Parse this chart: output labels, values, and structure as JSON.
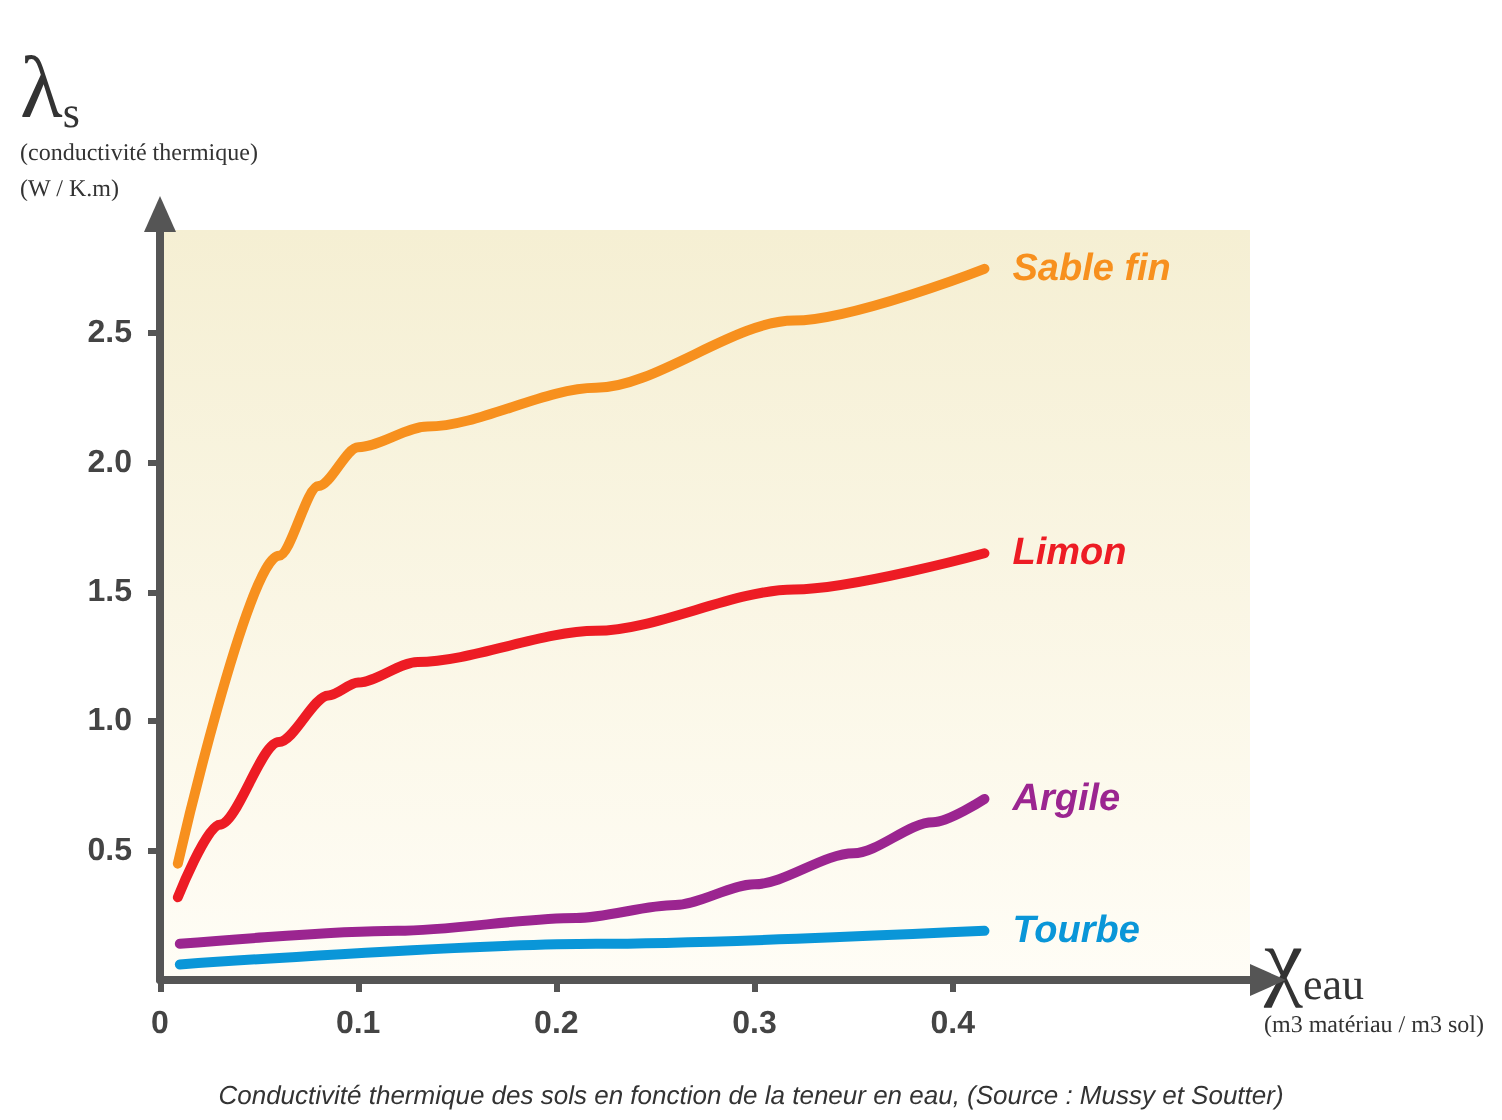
{
  "chart_data": {
    "type": "line",
    "xlabel": "χ$_{eau}$\n(m3 matériau / m3 sol)",
    "ylabel": "λ$_{s}$\n(conductivité thermique)\n(W / K.m)",
    "annotations": [
      "Conductivité thermique des sols en fonction de la teneur en eau, (Source : Mussy et Soutter)"
    ],
    "series": [
      {
        "name": "Sable fin",
        "color": "#f7901e",
        "x": [
          0.009,
          0.06,
          0.08,
          0.1,
          0.135,
          0.22,
          0.32,
          0.416
        ],
        "values": [
          0.45,
          1.64,
          1.91,
          2.06,
          2.14,
          2.29,
          2.55,
          2.75
        ]
      },
      {
        "name": "Limon",
        "color": "#ed1c24",
        "x": [
          0.009,
          0.03,
          0.06,
          0.085,
          0.1,
          0.13,
          0.22,
          0.32,
          0.416
        ],
        "values": [
          0.32,
          0.6,
          0.92,
          1.1,
          1.15,
          1.23,
          1.35,
          1.51,
          1.65
        ]
      },
      {
        "name": "Argile",
        "color": "#9b2590",
        "x": [
          0.01,
          0.12,
          0.21,
          0.26,
          0.3,
          0.35,
          0.39,
          0.416
        ],
        "values": [
          0.14,
          0.19,
          0.24,
          0.29,
          0.37,
          0.49,
          0.61,
          0.7
        ]
      },
      {
        "name": "Tourbe",
        "color": "#0a96d8",
        "x": [
          0.01,
          0.22,
          0.416
        ],
        "values": [
          0.06,
          0.14,
          0.19
        ]
      }
    ],
    "xlim": [
      0,
      0.55
    ],
    "ylim": [
      0,
      2.9
    ],
    "xticks": [
      0,
      0.1,
      0.2,
      0.3,
      0.4
    ],
    "yticks": [
      0.5,
      {
        "value": 1,
        "label": "1.0"
      },
      1.5,
      {
        "value": 2,
        "label": "2.0"
      },
      2.5
    ],
    "grid": false,
    "legend": false,
    "marker": "none",
    "line_style": "solid"
  }
}
